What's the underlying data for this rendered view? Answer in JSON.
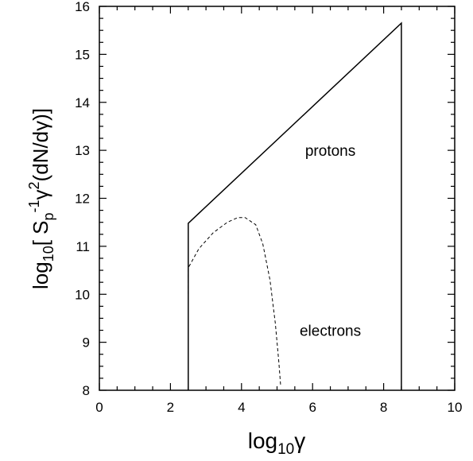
{
  "chart_data": {
    "type": "line",
    "title": "",
    "xlabel": {
      "base": "log",
      "sub": "10",
      "var": "γ"
    },
    "ylabel": {
      "parts": [
        {
          "t": "log",
          "k": "n"
        },
        {
          "t": "10",
          "k": "sub"
        },
        {
          "t": "[ S",
          "k": "n"
        },
        {
          "t": "p",
          "k": "sub"
        },
        {
          "t": "-1",
          "k": "sup"
        },
        {
          "t": "γ",
          "k": "n"
        },
        {
          "t": "2",
          "k": "sup"
        },
        {
          "t": "(dN/dγ)]",
          "k": "n"
        }
      ]
    },
    "xlim": [
      0,
      10
    ],
    "ylim": [
      8,
      16
    ],
    "xticks": [
      0,
      2,
      4,
      6,
      8,
      10
    ],
    "yticks": [
      8,
      9,
      10,
      11,
      12,
      13,
      14,
      15,
      16
    ],
    "grid": false,
    "series": [
      {
        "name": "protons",
        "style": "solid",
        "x": [
          2.5,
          2.5,
          8.5,
          8.5
        ],
        "y": [
          8.0,
          11.48,
          15.65,
          8.0
        ]
      },
      {
        "name": "electrons",
        "style": "dashed",
        "x": [
          2.5,
          2.5,
          2.8,
          3.2,
          3.6,
          3.9,
          4.1,
          4.4,
          4.6,
          4.8,
          4.95,
          5.05,
          5.1
        ],
        "y": [
          10.0,
          10.55,
          10.95,
          11.28,
          11.5,
          11.6,
          11.6,
          11.45,
          11.05,
          10.3,
          9.4,
          8.6,
          8.1
        ]
      }
    ],
    "annotations": [
      {
        "text": "protons",
        "x": 6.5,
        "y": 13.0
      },
      {
        "text": "electrons",
        "x": 6.5,
        "y": 9.25
      }
    ]
  }
}
